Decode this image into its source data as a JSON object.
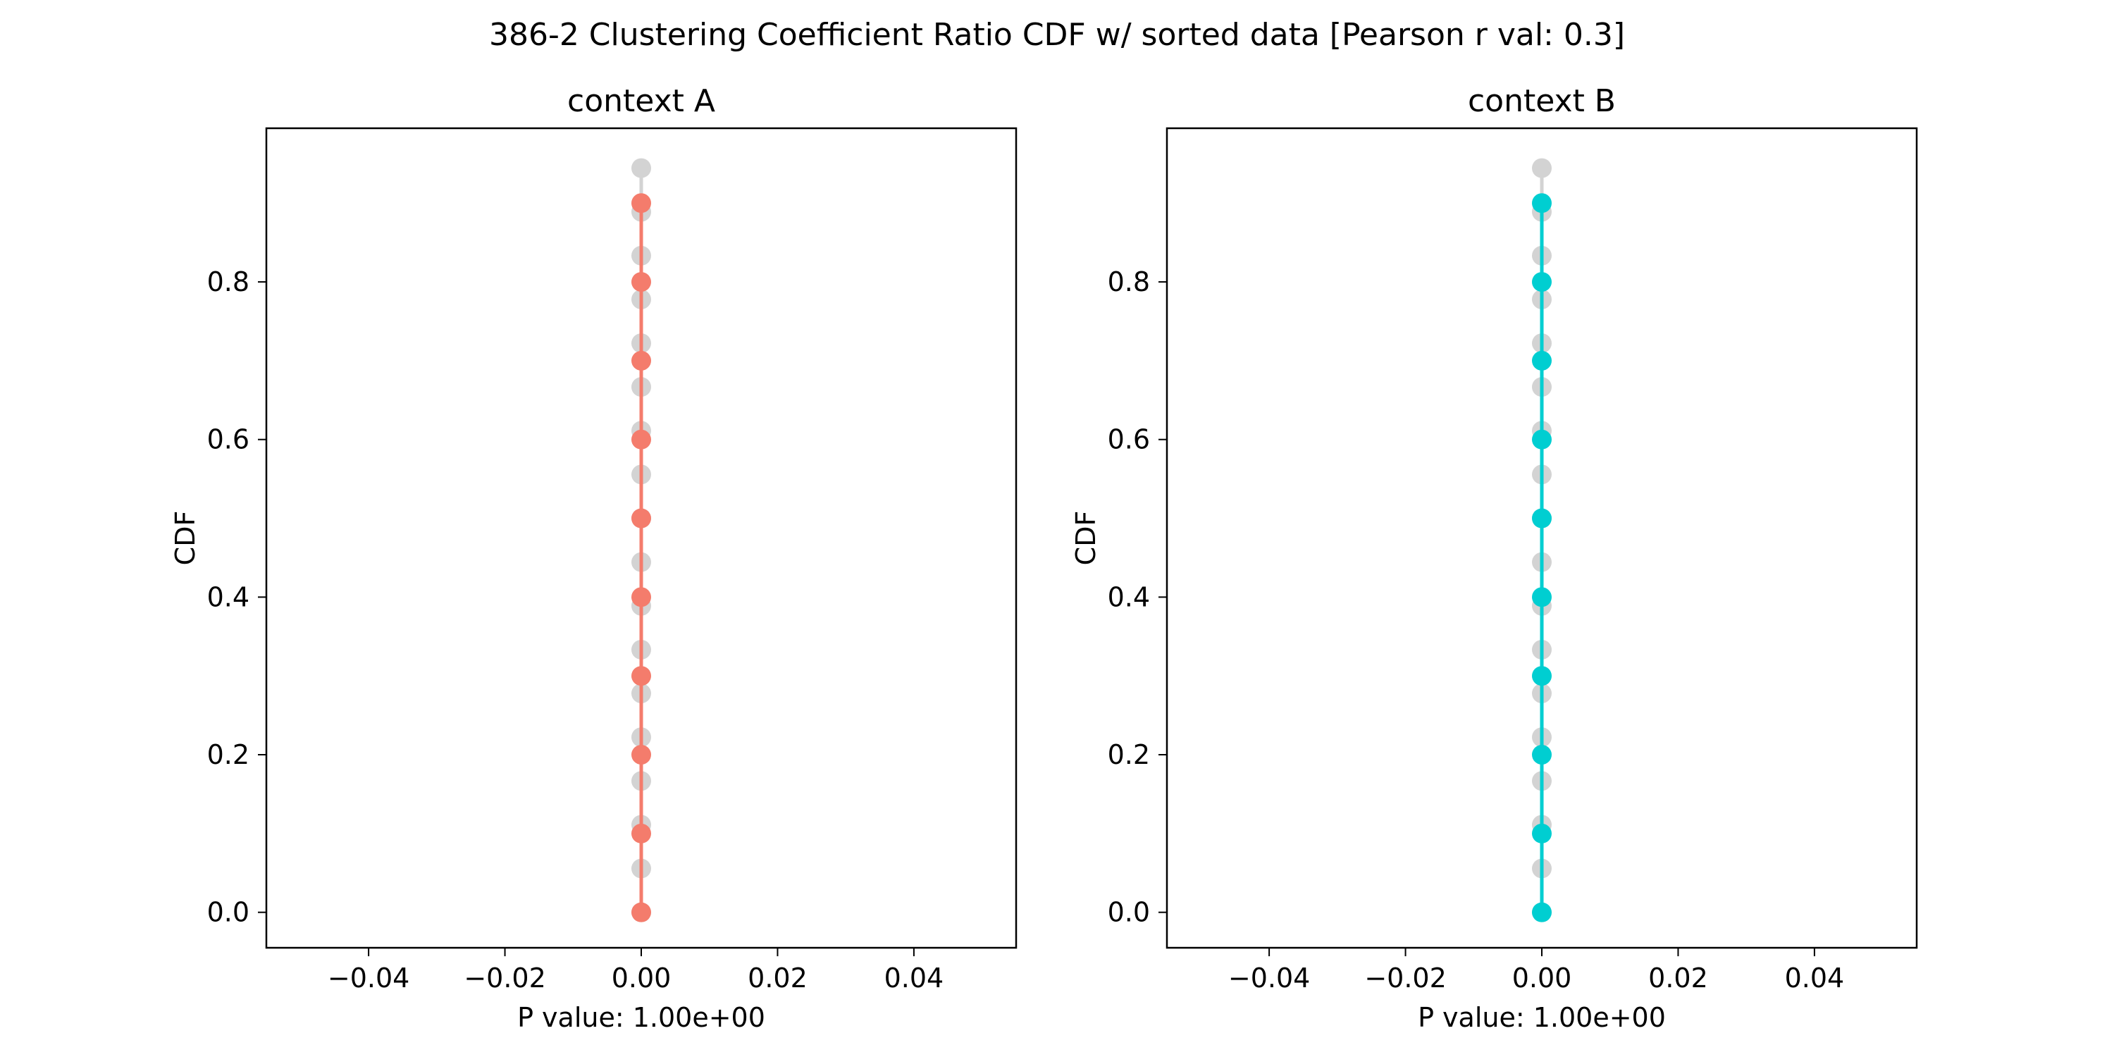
{
  "figure": {
    "title": "386-2 Clustering Coefficient Ratio CDF w/ sorted data [Pearson r val: 0.3]"
  },
  "chart_data": [
    {
      "type": "line",
      "title": "context A",
      "xlabel": "P value: 1.00e+00",
      "ylabel": "CDF",
      "xlim": [
        -0.055,
        0.055
      ],
      "ylim": [
        -0.045,
        0.995
      ],
      "x_ticks": [
        -0.04,
        -0.02,
        0.0,
        0.02,
        0.04
      ],
      "x_tick_labels": [
        "−0.04",
        "−0.02",
        "0.00",
        "0.02",
        "0.04"
      ],
      "y_ticks": [
        0.0,
        0.2,
        0.4,
        0.6,
        0.8
      ],
      "y_tick_labels": [
        "0.0",
        "0.2",
        "0.4",
        "0.6",
        "0.8"
      ],
      "grid": false,
      "series": [
        {
          "color": "#d3d3d3",
          "x": [
            0,
            0,
            0,
            0,
            0,
            0,
            0,
            0,
            0,
            0,
            0,
            0,
            0,
            0,
            0,
            0,
            0,
            0
          ],
          "y": [
            0.0,
            0.0556,
            0.1111,
            0.1667,
            0.2222,
            0.2778,
            0.3333,
            0.3889,
            0.4444,
            0.5,
            0.5556,
            0.6111,
            0.6667,
            0.7222,
            0.7778,
            0.8333,
            0.8889,
            0.9444
          ]
        },
        {
          "color": "#f47c6c",
          "x": [
            0,
            0,
            0,
            0,
            0,
            0,
            0,
            0,
            0,
            0
          ],
          "y": [
            0.0,
            0.1,
            0.2,
            0.3,
            0.4,
            0.5,
            0.6,
            0.7,
            0.8,
            0.9
          ]
        }
      ]
    },
    {
      "type": "line",
      "title": "context B",
      "xlabel": "P value: 1.00e+00",
      "ylabel": "CDF",
      "xlim": [
        -0.055,
        0.055
      ],
      "ylim": [
        -0.045,
        0.995
      ],
      "x_ticks": [
        -0.04,
        -0.02,
        0.0,
        0.02,
        0.04
      ],
      "x_tick_labels": [
        "−0.04",
        "−0.02",
        "0.00",
        "0.02",
        "0.04"
      ],
      "y_ticks": [
        0.0,
        0.2,
        0.4,
        0.6,
        0.8
      ],
      "y_tick_labels": [
        "0.0",
        "0.2",
        "0.4",
        "0.6",
        "0.8"
      ],
      "grid": false,
      "series": [
        {
          "color": "#d3d3d3",
          "x": [
            0,
            0,
            0,
            0,
            0,
            0,
            0,
            0,
            0,
            0,
            0,
            0,
            0,
            0,
            0,
            0,
            0,
            0
          ],
          "y": [
            0.0,
            0.0556,
            0.1111,
            0.1667,
            0.2222,
            0.2778,
            0.3333,
            0.3889,
            0.4444,
            0.5,
            0.5556,
            0.6111,
            0.6667,
            0.7222,
            0.7778,
            0.8333,
            0.8889,
            0.9444
          ]
        },
        {
          "color": "#00ced1",
          "x": [
            0,
            0,
            0,
            0,
            0,
            0,
            0,
            0,
            0,
            0
          ],
          "y": [
            0.0,
            0.1,
            0.2,
            0.3,
            0.4,
            0.5,
            0.6,
            0.7,
            0.8,
            0.9
          ]
        }
      ]
    }
  ]
}
